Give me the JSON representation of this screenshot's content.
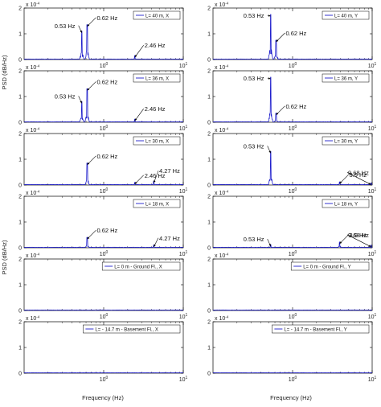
{
  "figure": {
    "ylabel": "PSD (dB/Hz)",
    "xlabel": "Frequency (Hz)",
    "exponent_label": "x 10^-4"
  },
  "chart_data": [
    {
      "type": "line",
      "panel": "L=40m X",
      "x_scale": "log",
      "xlim": [
        0.1,
        10
      ],
      "ylim": [
        0,
        2
      ],
      "yticks": [
        0,
        1,
        2
      ],
      "xtick_labels": [
        "10^0",
        "10^1"
      ],
      "legend": "L= 40 m, X",
      "legend_placement": "top-right",
      "series": [
        {
          "name": "L= 40 m, X",
          "peaks": [
            {
              "f": 0.53,
              "psd": 1.1
            },
            {
              "f": 0.62,
              "psd": 1.35
            },
            {
              "f": 2.46,
              "psd": 0.15
            }
          ]
        }
      ],
      "annotations": [
        {
          "text": "0.53 Hz",
          "f": 0.53
        },
        {
          "text": "0.62 Hz",
          "f": 0.62
        },
        {
          "text": "2.46 Hz",
          "f": 2.46
        }
      ]
    },
    {
      "type": "line",
      "panel": "L=40m Y",
      "x_scale": "log",
      "xlim": [
        0.1,
        10
      ],
      "ylim": [
        0,
        2
      ],
      "yticks": [
        0,
        1,
        2
      ],
      "xtick_labels": [
        "10^0",
        "10^1"
      ],
      "legend": "L= 40 m, Y",
      "legend_placement": "top-right",
      "series": [
        {
          "name": "L= 40 m, Y",
          "peaks": [
            {
              "f": 0.53,
              "psd": 1.75
            },
            {
              "f": 0.62,
              "psd": 0.75
            }
          ]
        }
      ],
      "annotations": [
        {
          "text": "0.53 Hz",
          "f": 0.53
        },
        {
          "text": "0.62 Hz",
          "f": 0.62
        }
      ]
    },
    {
      "type": "line",
      "panel": "L=36m X",
      "x_scale": "log",
      "xlim": [
        0.1,
        10
      ],
      "ylim": [
        0,
        2
      ],
      "yticks": [
        0,
        1,
        2
      ],
      "xtick_labels": [
        "10^0",
        "10^1"
      ],
      "legend": "L= 36 m, X",
      "legend_placement": "top-right",
      "series": [
        {
          "name": "L= 36 m, X",
          "peaks": [
            {
              "f": 0.53,
              "psd": 0.8
            },
            {
              "f": 0.62,
              "psd": 1.3
            },
            {
              "f": 2.46,
              "psd": 0.12
            }
          ]
        }
      ],
      "annotations": [
        {
          "text": "0.53 Hz",
          "f": 0.53
        },
        {
          "text": "0.62 Hz",
          "f": 0.62
        },
        {
          "text": "2.46 Hz",
          "f": 2.46
        }
      ]
    },
    {
      "type": "line",
      "panel": "L=36m Y",
      "x_scale": "log",
      "xlim": [
        0.1,
        10
      ],
      "ylim": [
        0,
        2
      ],
      "yticks": [
        0,
        1,
        2
      ],
      "xtick_labels": [
        "10^0",
        "10^1"
      ],
      "legend": "L= 36 m, Y",
      "legend_placement": "top-right",
      "series": [
        {
          "name": "L= 36 m, Y",
          "peaks": [
            {
              "f": 0.53,
              "psd": 1.75
            },
            {
              "f": 0.62,
              "psd": 0.35
            }
          ]
        }
      ],
      "annotations": [
        {
          "text": "0.53 Hz",
          "f": 0.53
        },
        {
          "text": "0.62 Hz",
          "f": 0.62
        }
      ]
    },
    {
      "type": "line",
      "panel": "L=30m X",
      "x_scale": "log",
      "xlim": [
        0.1,
        10
      ],
      "ylim": [
        0,
        2
      ],
      "yticks": [
        0,
        1,
        2
      ],
      "xtick_labels": [
        "10^0",
        "10^1"
      ],
      "legend": "L= 30 m, X",
      "legend_placement": "top-right",
      "series": [
        {
          "name": "L= 30 m, X",
          "peaks": [
            {
              "f": 0.62,
              "psd": 0.85
            },
            {
              "f": 2.46,
              "psd": 0.1
            },
            {
              "f": 4.27,
              "psd": 0.15
            }
          ]
        }
      ],
      "annotations": [
        {
          "text": "0.62 Hz",
          "f": 0.62
        },
        {
          "text": "2.46 Hz",
          "f": 2.46
        },
        {
          "text": "4.27 Hz",
          "f": 4.27
        }
      ]
    },
    {
      "type": "line",
      "panel": "L=30m Y",
      "x_scale": "log",
      "xlim": [
        0.1,
        10
      ],
      "ylim": [
        0,
        2
      ],
      "yticks": [
        0,
        1,
        2
      ],
      "xtick_labels": [
        "10^0",
        "10^1"
      ],
      "legend": "L= 30 m, Y",
      "legend_placement": "top-right",
      "series": [
        {
          "name": "L= 30 m, Y",
          "peaks": [
            {
              "f": 0.53,
              "psd": 1.3
            },
            {
              "f": 3.9,
              "psd": 0.12
            },
            {
              "f": 9.68,
              "psd": 0.08
            }
          ]
        }
      ],
      "annotations": [
        {
          "text": "0.53 Hz",
          "f": 0.53
        },
        {
          "text": "3.9 Hz",
          "f": 3.9
        },
        {
          "text": "9.68 Hz",
          "f": 9.68
        }
      ]
    },
    {
      "type": "line",
      "panel": "L=18m X",
      "x_scale": "log",
      "xlim": [
        0.1,
        10
      ],
      "ylim": [
        0,
        2
      ],
      "yticks": [
        0,
        1,
        2
      ],
      "xtick_labels": [
        "10^0",
        "10^1"
      ],
      "legend": "L= 18 m, X",
      "legend_placement": "top-right",
      "series": [
        {
          "name": "L= 18 m, X",
          "peaks": [
            {
              "f": 0.62,
              "psd": 0.4
            },
            {
              "f": 4.27,
              "psd": 0.1
            }
          ]
        }
      ],
      "annotations": [
        {
          "text": "0.62 Hz",
          "f": 0.62
        },
        {
          "text": "4.27 Hz",
          "f": 4.27
        }
      ]
    },
    {
      "type": "line",
      "panel": "L=18m Y",
      "x_scale": "log",
      "xlim": [
        0.1,
        10
      ],
      "ylim": [
        0,
        2
      ],
      "yticks": [
        0,
        1,
        2
      ],
      "xtick_labels": [
        "10^0",
        "10^1"
      ],
      "legend": "L= 18 m, Y",
      "legend_placement": "top-right",
      "series": [
        {
          "name": "L= 18 m, Y",
          "peaks": [
            {
              "f": 0.53,
              "psd": 0.12
            },
            {
              "f": 3.9,
              "psd": 0.22
            },
            {
              "f": 9.68,
              "psd": 0.1
            }
          ]
        }
      ],
      "annotations": [
        {
          "text": "0.53 Hz",
          "f": 0.53
        },
        {
          "text": "3.9 Hz",
          "f": 3.9
        },
        {
          "text": "9.68 Hz",
          "f": 9.68
        }
      ]
    },
    {
      "type": "line",
      "panel": "L=0m X",
      "x_scale": "log",
      "xlim": [
        0.1,
        10
      ],
      "ylim": [
        0,
        2
      ],
      "yticks": [
        0,
        1,
        2
      ],
      "xtick_labels": [
        "10^0",
        "10^1"
      ],
      "legend": "L= 0 m - Ground Fl., X",
      "legend_placement": "top-right",
      "series": [
        {
          "name": "L= 0 m - Ground Fl., X",
          "peaks": []
        }
      ],
      "annotations": []
    },
    {
      "type": "line",
      "panel": "L=0m Y",
      "x_scale": "log",
      "xlim": [
        0.1,
        10
      ],
      "ylim": [
        0,
        2
      ],
      "yticks": [
        0,
        1,
        2
      ],
      "xtick_labels": [
        "10^0",
        "10^1"
      ],
      "legend": "L= 0 m - Ground Fl., Y",
      "legend_placement": "top-right",
      "series": [
        {
          "name": "L= 0 m - Ground Fl., Y",
          "peaks": []
        }
      ],
      "annotations": []
    },
    {
      "type": "line",
      "panel": "L=-14.7m X",
      "x_scale": "log",
      "xlim": [
        0.1,
        10
      ],
      "ylim": [
        0,
        2
      ],
      "yticks": [
        0,
        1,
        2
      ],
      "xtick_labels": [
        "10^0",
        "10^1"
      ],
      "legend": "L= - 14.7 m - Basement Fl., X",
      "legend_placement": "top-right",
      "series": [
        {
          "name": "L= - 14.7 m - Basement Fl., X",
          "peaks": []
        }
      ],
      "annotations": []
    },
    {
      "type": "line",
      "panel": "L=-14.7m Y",
      "x_scale": "log",
      "xlim": [
        0.1,
        10
      ],
      "ylim": [
        0,
        2
      ],
      "yticks": [
        0,
        1,
        2
      ],
      "xtick_labels": [
        "10^0",
        "10^1"
      ],
      "legend": "L= - 14.7 m - Basement Fl., Y",
      "legend_placement": "top-right",
      "series": [
        {
          "name": "L= - 14.7 m - Basement Fl., Y",
          "peaks": []
        }
      ],
      "annotations": []
    }
  ]
}
